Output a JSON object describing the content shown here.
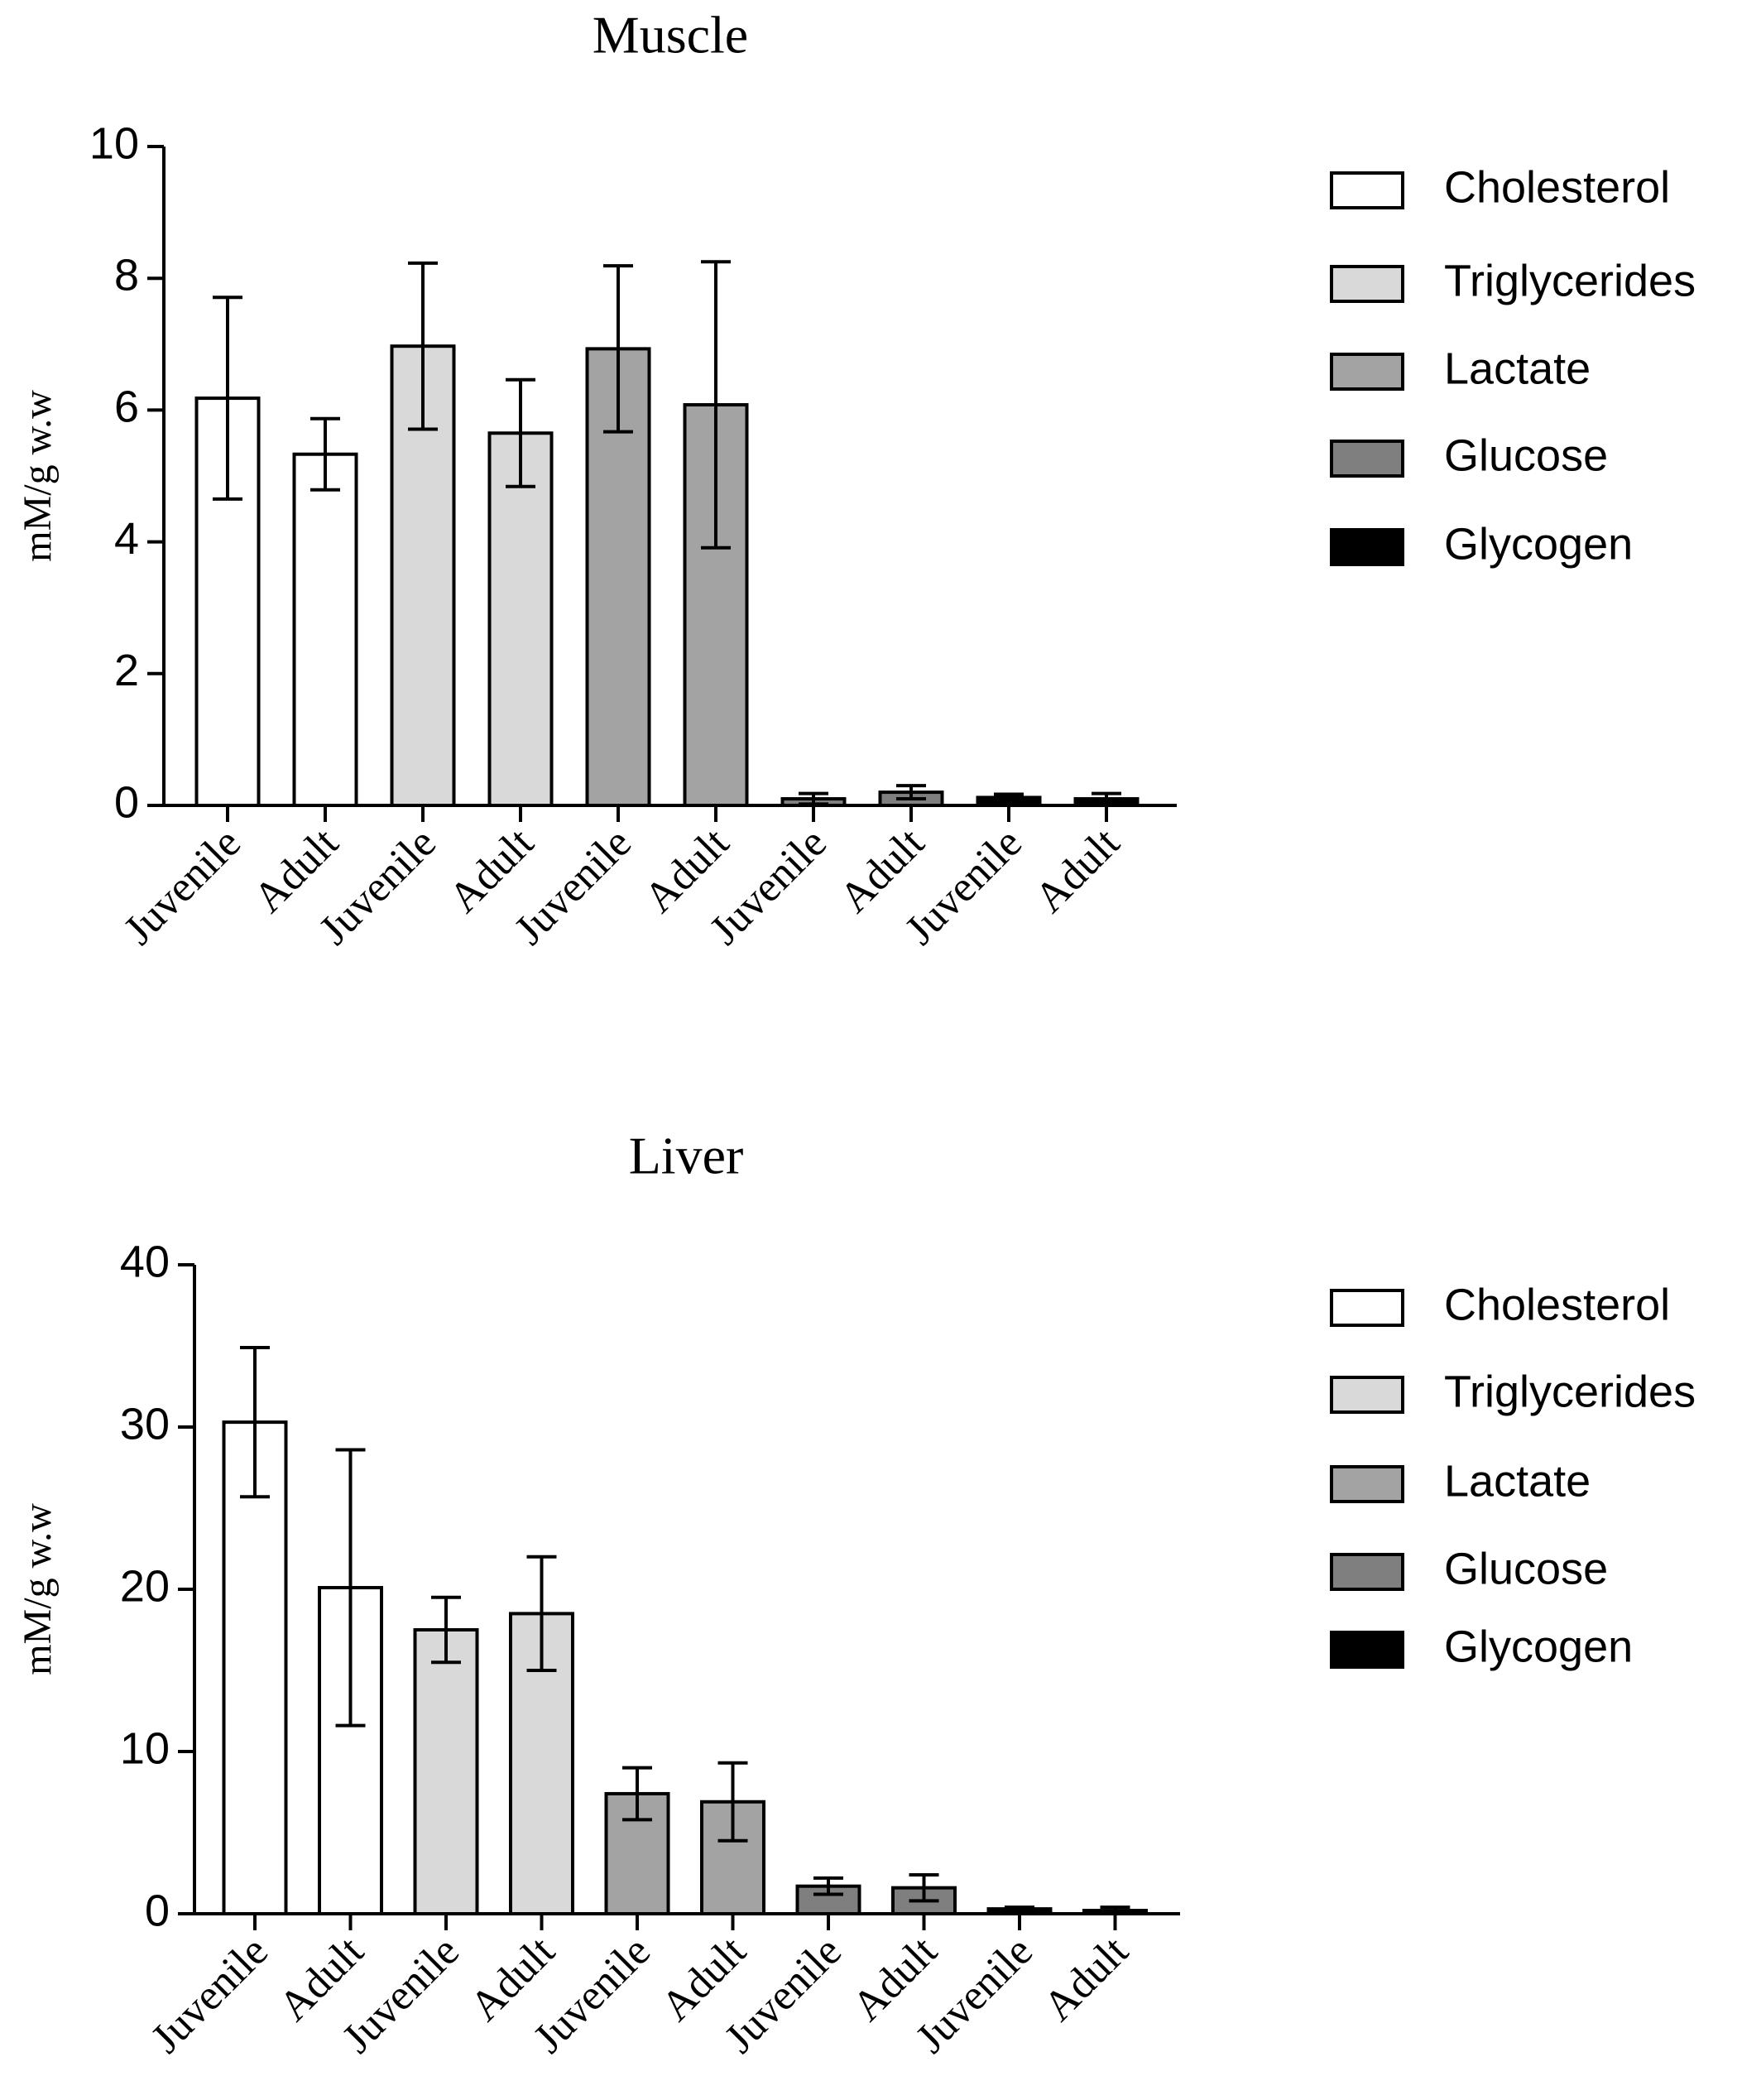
{
  "chart_data": [
    {
      "type": "bar",
      "title": "Muscle",
      "y_label": "mM/g w.w",
      "ylim": [
        0,
        10
      ],
      "yticks": [
        0,
        2,
        4,
        6,
        8,
        10
      ],
      "series": [
        {
          "name": "Cholesterol",
          "color": "#ffffff",
          "categories": [
            "Juvenile",
            "Adult"
          ],
          "values": [
            6.18,
            5.33
          ],
          "errors": [
            1.53,
            0.54
          ]
        },
        {
          "name": "Triglycerides",
          "color": "#d9d9d9",
          "categories": [
            "Juvenile",
            "Adult"
          ],
          "values": [
            6.97,
            5.65
          ],
          "errors": [
            1.26,
            0.81
          ]
        },
        {
          "name": "Lactate",
          "color": "#a3a3a3",
          "categories": [
            "Juvenile",
            "Adult"
          ],
          "values": [
            6.93,
            6.08
          ],
          "errors": [
            1.26,
            2.17
          ]
        },
        {
          "name": "Glucose",
          "color": "#7f7f7f",
          "categories": [
            "Juvenile",
            "Adult"
          ],
          "values": [
            0.1,
            0.2
          ],
          "errors": [
            0.08,
            0.1
          ]
        },
        {
          "name": "Glycogen",
          "color": "#000000",
          "categories": [
            "Juvenile",
            "Adult"
          ],
          "values": [
            0.12,
            0.1
          ],
          "errors": [
            0.05,
            0.08
          ]
        }
      ]
    },
    {
      "type": "bar",
      "title": "Liver",
      "y_label": "mM/g w.w",
      "ylim": [
        0,
        40
      ],
      "yticks": [
        0,
        10,
        20,
        30,
        40
      ],
      "series": [
        {
          "name": "Cholesterol",
          "color": "#ffffff",
          "categories": [
            "Juvenile",
            "Adult"
          ],
          "values": [
            30.3,
            20.1
          ],
          "errors": [
            4.6,
            8.5
          ]
        },
        {
          "name": "Triglycerides",
          "color": "#d9d9d9",
          "categories": [
            "Juvenile",
            "Adult"
          ],
          "values": [
            17.5,
            18.5
          ],
          "errors": [
            2.0,
            3.5
          ]
        },
        {
          "name": "Lactate",
          "color": "#a3a3a3",
          "categories": [
            "Juvenile",
            "Adult"
          ],
          "values": [
            7.4,
            6.9
          ],
          "errors": [
            1.6,
            2.4
          ]
        },
        {
          "name": "Glucose",
          "color": "#7f7f7f",
          "categories": [
            "Juvenile",
            "Adult"
          ],
          "values": [
            1.7,
            1.6
          ],
          "errors": [
            0.5,
            0.8
          ]
        },
        {
          "name": "Glycogen",
          "color": "#000000",
          "categories": [
            "Juvenile",
            "Adult"
          ],
          "values": [
            0.3,
            0.2
          ],
          "errors": [
            0.1,
            0.2
          ]
        }
      ]
    }
  ]
}
